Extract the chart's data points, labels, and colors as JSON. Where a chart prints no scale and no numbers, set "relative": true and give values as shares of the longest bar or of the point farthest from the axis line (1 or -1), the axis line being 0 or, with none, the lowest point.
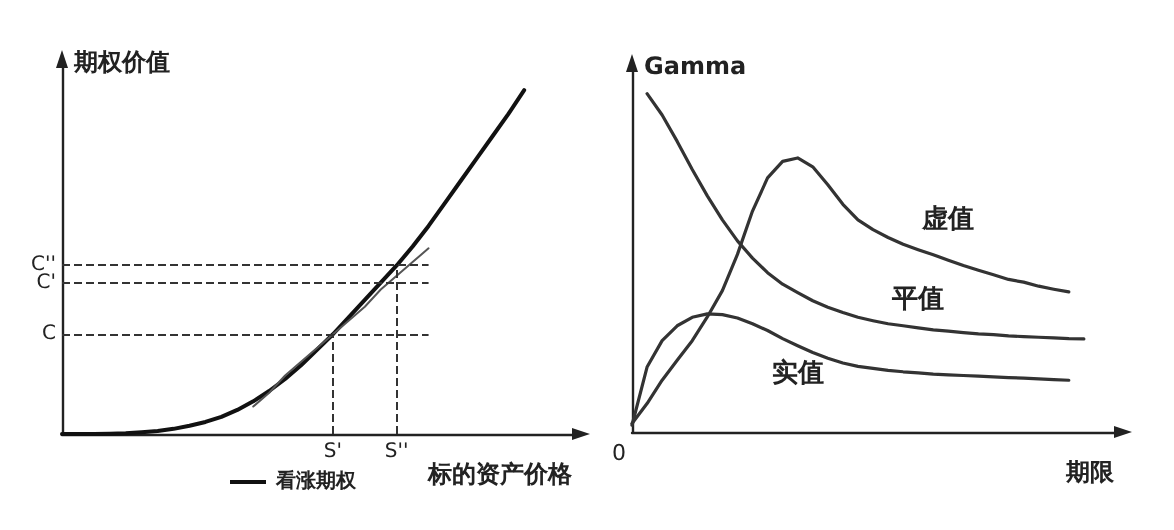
{
  "chart_data": [
    {
      "type": "line",
      "relative": true,
      "xlabel": "标的资产价格",
      "ylabel": "期权价值",
      "categories": [
        null,
        null,
        null,
        null,
        null,
        null,
        null,
        null,
        null,
        null,
        null,
        null,
        null,
        null,
        null,
        null,
        null,
        "S'",
        null,
        null,
        null,
        "S''",
        null,
        null,
        null,
        null,
        null,
        null,
        null,
        null,
        null,
        null,
        null
      ],
      "series": [
        {
          "name": "看涨期权",
          "color": "#111111",
          "values": [
            0,
            0,
            0,
            0.001,
            0.002,
            0.005,
            0.009,
            0.015,
            0.024,
            0.035,
            0.05,
            0.07,
            0.095,
            0.125,
            0.16,
            0.2,
            0.245,
            0.29,
            0.34,
            0.39,
            0.44,
            0.49,
            0.545,
            0.605,
            0.67,
            0.735,
            0.8,
            0.865,
            0.93,
            1,
            null,
            null,
            null
          ]
        },
        {
          "color": "#555555",
          "values": [
            null,
            null,
            null,
            null,
            null,
            null,
            null,
            null,
            null,
            null,
            null,
            null,
            0.08,
            0.12,
            0.17,
            0.21,
            0.25,
            0.29,
            0.33,
            0.37,
            0.42,
            0.46,
            0.5,
            0.54,
            null,
            null,
            null,
            null,
            null,
            null,
            null,
            null,
            null
          ]
        }
      ],
      "ref_lines": [
        {
          "axis": "y",
          "value": 0.29,
          "label": "C",
          "line_style": "dashed",
          "color": "#333333"
        },
        {
          "axis": "y",
          "value": 0.44,
          "label": "C'",
          "line_style": "dashed",
          "color": "#333333"
        },
        {
          "axis": "y",
          "value": 0.49,
          "label": "C''",
          "line_style": "dashed",
          "color": "#333333"
        },
        {
          "axis": "x",
          "value": "S'",
          "line_style": "dashed",
          "color": "#333333"
        },
        {
          "axis": "x",
          "value": "S''",
          "line_style": "dashed",
          "color": "#333333"
        }
      ],
      "legend": "bottom",
      "grid": false,
      "marker": "none",
      "line_style": "solid"
    },
    {
      "type": "line",
      "relative": true,
      "xlabel": "期限",
      "ylabel": "Gamma",
      "annotations": [
        "0"
      ],
      "categories": [
        null,
        null,
        null,
        null,
        null,
        null,
        null,
        null,
        null,
        null,
        null,
        null,
        null,
        null,
        null,
        null,
        null,
        null,
        null,
        null,
        null,
        null,
        null,
        null,
        null,
        null,
        null,
        null,
        null,
        null,
        null,
        null,
        null
      ],
      "series": [
        {
          "name": "虚值",
          "color": "#333333",
          "values": [
            0.025,
            0.084,
            0.153,
            0.212,
            0.27,
            0.34,
            0.418,
            0.525,
            0.653,
            0.751,
            0.8,
            0.81,
            0.784,
            0.731,
            0.673,
            0.627,
            0.598,
            0.575,
            0.555,
            0.539,
            0.524,
            0.508,
            0.492,
            0.478,
            0.465,
            0.451,
            0.443,
            0.431,
            0.422,
            0.414,
            null,
            null,
            null
          ]
        },
        {
          "name": "平值",
          "color": "#333333",
          "values": [
            null,
            1,
            0.937,
            0.859,
            0.776,
            0.698,
            0.627,
            0.565,
            0.514,
            0.471,
            0.437,
            0.412,
            0.388,
            0.369,
            0.353,
            0.339,
            0.329,
            0.32,
            0.314,
            0.308,
            0.302,
            0.298,
            0.294,
            0.29,
            0.288,
            0.284,
            0.282,
            0.28,
            0.278,
            0.276,
            0.275,
            null,
            null
          ]
        },
        {
          "name": "实值",
          "color": "#333333",
          "values": [
            0.02,
            0.192,
            0.27,
            0.314,
            0.339,
            0.349,
            0.347,
            0.337,
            0.32,
            0.3,
            0.276,
            0.255,
            0.235,
            0.218,
            0.204,
            0.194,
            0.188,
            0.182,
            0.178,
            0.175,
            0.171,
            0.169,
            0.167,
            0.165,
            0.163,
            0.161,
            0.159,
            0.157,
            0.155,
            0.153,
            null,
            null,
            null
          ]
        }
      ],
      "legend": false,
      "grid": false,
      "marker": "none",
      "line_style": "solid"
    }
  ]
}
